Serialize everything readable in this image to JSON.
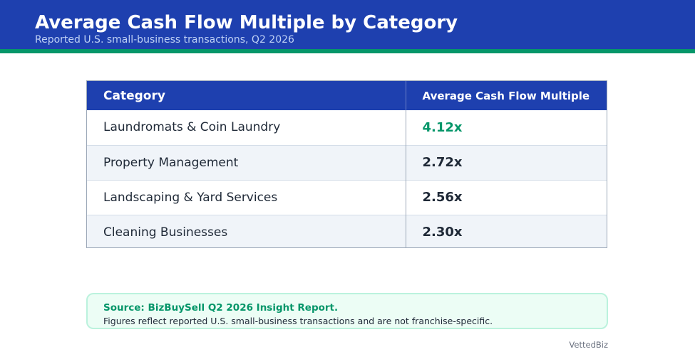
{
  "header": {
    "title": "Average Cash Flow Multiple by Category",
    "subtitle": "Reported U.S. small-business transactions, Q2 2026"
  },
  "chart_data": {
    "type": "table",
    "columns": [
      "Category",
      "Average Cash Flow Multiple"
    ],
    "rows": [
      {
        "category": "Laundromats & Coin Laundry",
        "multiple": 4.12,
        "display": "4.12x"
      },
      {
        "category": "Property Management",
        "multiple": 2.72,
        "display": "2.72x"
      },
      {
        "category": "Landscaping & Yard Services",
        "multiple": 2.56,
        "display": "2.56x"
      },
      {
        "category": "Cleaning Businesses",
        "multiple": 2.3,
        "display": "2.30x"
      }
    ]
  },
  "source": {
    "title": "Source: BizBuySell Q2 2026 Insight Report.",
    "note": "Figures reflect reported U.S. small-business transactions and are not franchise-specific."
  },
  "brand": "VettedBiz",
  "colors": {
    "header_bg": "#1e40af",
    "accent": "#059669",
    "highlight_value": "#059669",
    "text": "#1f2937"
  }
}
